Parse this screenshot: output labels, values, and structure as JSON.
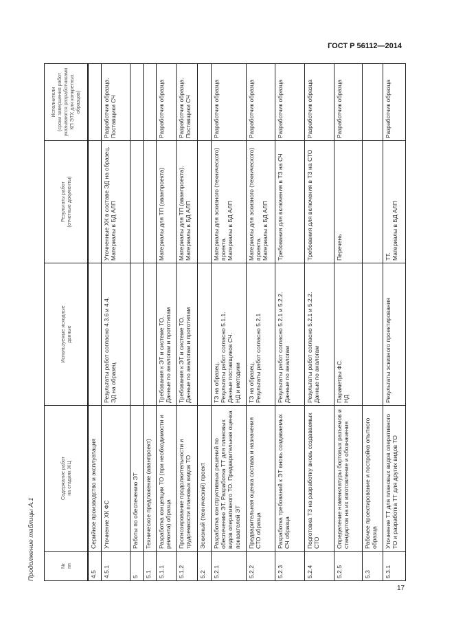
{
  "document": {
    "header": "ГОСТ Р 56112—2014",
    "caption": "Продолжение таблицы А.1",
    "page_number": "17"
  },
  "table": {
    "columns": [
      "№\nпп",
      "Содержание работ\nна стадиях ЖЦ",
      "Используемые исходные\nданные",
      "Результаты работ\n(отчетные документы)",
      "Исполнители\n(сроки завершения работ указываются разработчиками КП ЭТХ для конкретных образцов)"
    ],
    "rows": [
      {
        "num": "4.5",
        "content": "Серийное производство и эксплуатация",
        "inputs": "",
        "results": "",
        "executors": ""
      },
      {
        "num": "4.5.1",
        "content": "Уточнение ХК ФС",
        "inputs": "Результаты работ согласно 4.3.6 и 4.4.\nЭД на образец",
        "results": "Уточненные ХК в составе ЭД на образец.\nМатериалы в БД АЛП",
        "executors": "Разработчик образца.\nПоставщики СЧ"
      },
      {
        "num": "5",
        "content": "Работы по обеспечению ЭТ",
        "inputs": "",
        "results": "",
        "executors": ""
      },
      {
        "num": "5.1",
        "content": "Техническое предложение (аванпроект)",
        "inputs": "",
        "results": "",
        "executors": ""
      },
      {
        "num": "5.1.1",
        "content": "Разработка концепции ТО (при необходимости и ремонта) образца",
        "inputs": "Требования к ЭТ и системе ТО.\nДанные по аналогам и прототипам",
        "results": "Материалы для ТП (аванпроекта)",
        "executors": "Разработчик образца"
      },
      {
        "num": "5.1.2",
        "content": "Прогнозирование продолжительности и трудоемкости плановых видов ТО",
        "inputs": "Требования к ЭТ и системе ТО.\nДанные по аналогам и прототипам",
        "results": "Материалы для ТП (аванпроекта).\nМатериалы в БД АЛП",
        "executors": "Разработчик образца.\nПоставщики СЧ"
      },
      {
        "num": "5.2",
        "content": "Эскизный (технический) проект",
        "inputs": "",
        "results": "",
        "executors": ""
      },
      {
        "num": "5.2.1",
        "content": "Разработка конструктивных решений по обеспечению ЭТ. Разработка ТТ для плановых видов оперативного ТО. Предварительная оценка показателей ЭТ",
        "inputs": "ТЗ на образец.\nРезультаты работ согласно 5.1.1.\nДанные поставщиков СЧ.\nНД и методики",
        "results": "Материалы для эскизного (технического) проекта.\nМатериалы в БД АЛП",
        "executors": "Разработчик образца"
      },
      {
        "num": "5.2.2",
        "content": "Предварительная оценка состава и назначения СТО образца",
        "inputs": "ТЗ на образец.\nРезультаты работ согласно 5.2.1",
        "results": "Материалы для эскизного (технического) проекта.\nМатериалы в БД АЛП",
        "executors": "Разработчик образца"
      },
      {
        "num": "5.2.3",
        "content": "Разработка требований к ЭТ вновь создаваемых СЧ образца",
        "inputs": "Результаты работ согласно 5.2.1 и 5.2.2.\nДанные по аналогам",
        "results": "Требования для включения в ТЗ на СЧ",
        "executors": "Разработчик образца"
      },
      {
        "num": "5.2.4",
        "content": "Подготовка ТЗ на разработку вновь создаваемых СТО",
        "inputs": "Результаты работ согласно 5.2.1 и 5.2.2.\nДанные по аналогам",
        "results": "Требования для включения в ТЗ на СТО",
        "executors": "Разработчик образца"
      },
      {
        "num": "5.2.5",
        "content": "Определение номенклатуры бортовых разъемов и стандартов на их изготовление и обозначения",
        "inputs": "Параметры ФС.\nНД",
        "results": "Перечень",
        "executors": "Разработчик образца"
      },
      {
        "num": "5.3",
        "content": "Рабочее проектирование и постройка опытного образца",
        "inputs": "",
        "results": "",
        "executors": ""
      },
      {
        "num": "5.3.1",
        "content": "Уточнение ТТ для плановых видов оперативного ТО и разработка ТТ для других видов ТО",
        "inputs": "Результаты эскизного проектирования",
        "results": "ТТ.\nМатериалы в БД АЛП",
        "executors": "Разработчик образца"
      }
    ]
  }
}
